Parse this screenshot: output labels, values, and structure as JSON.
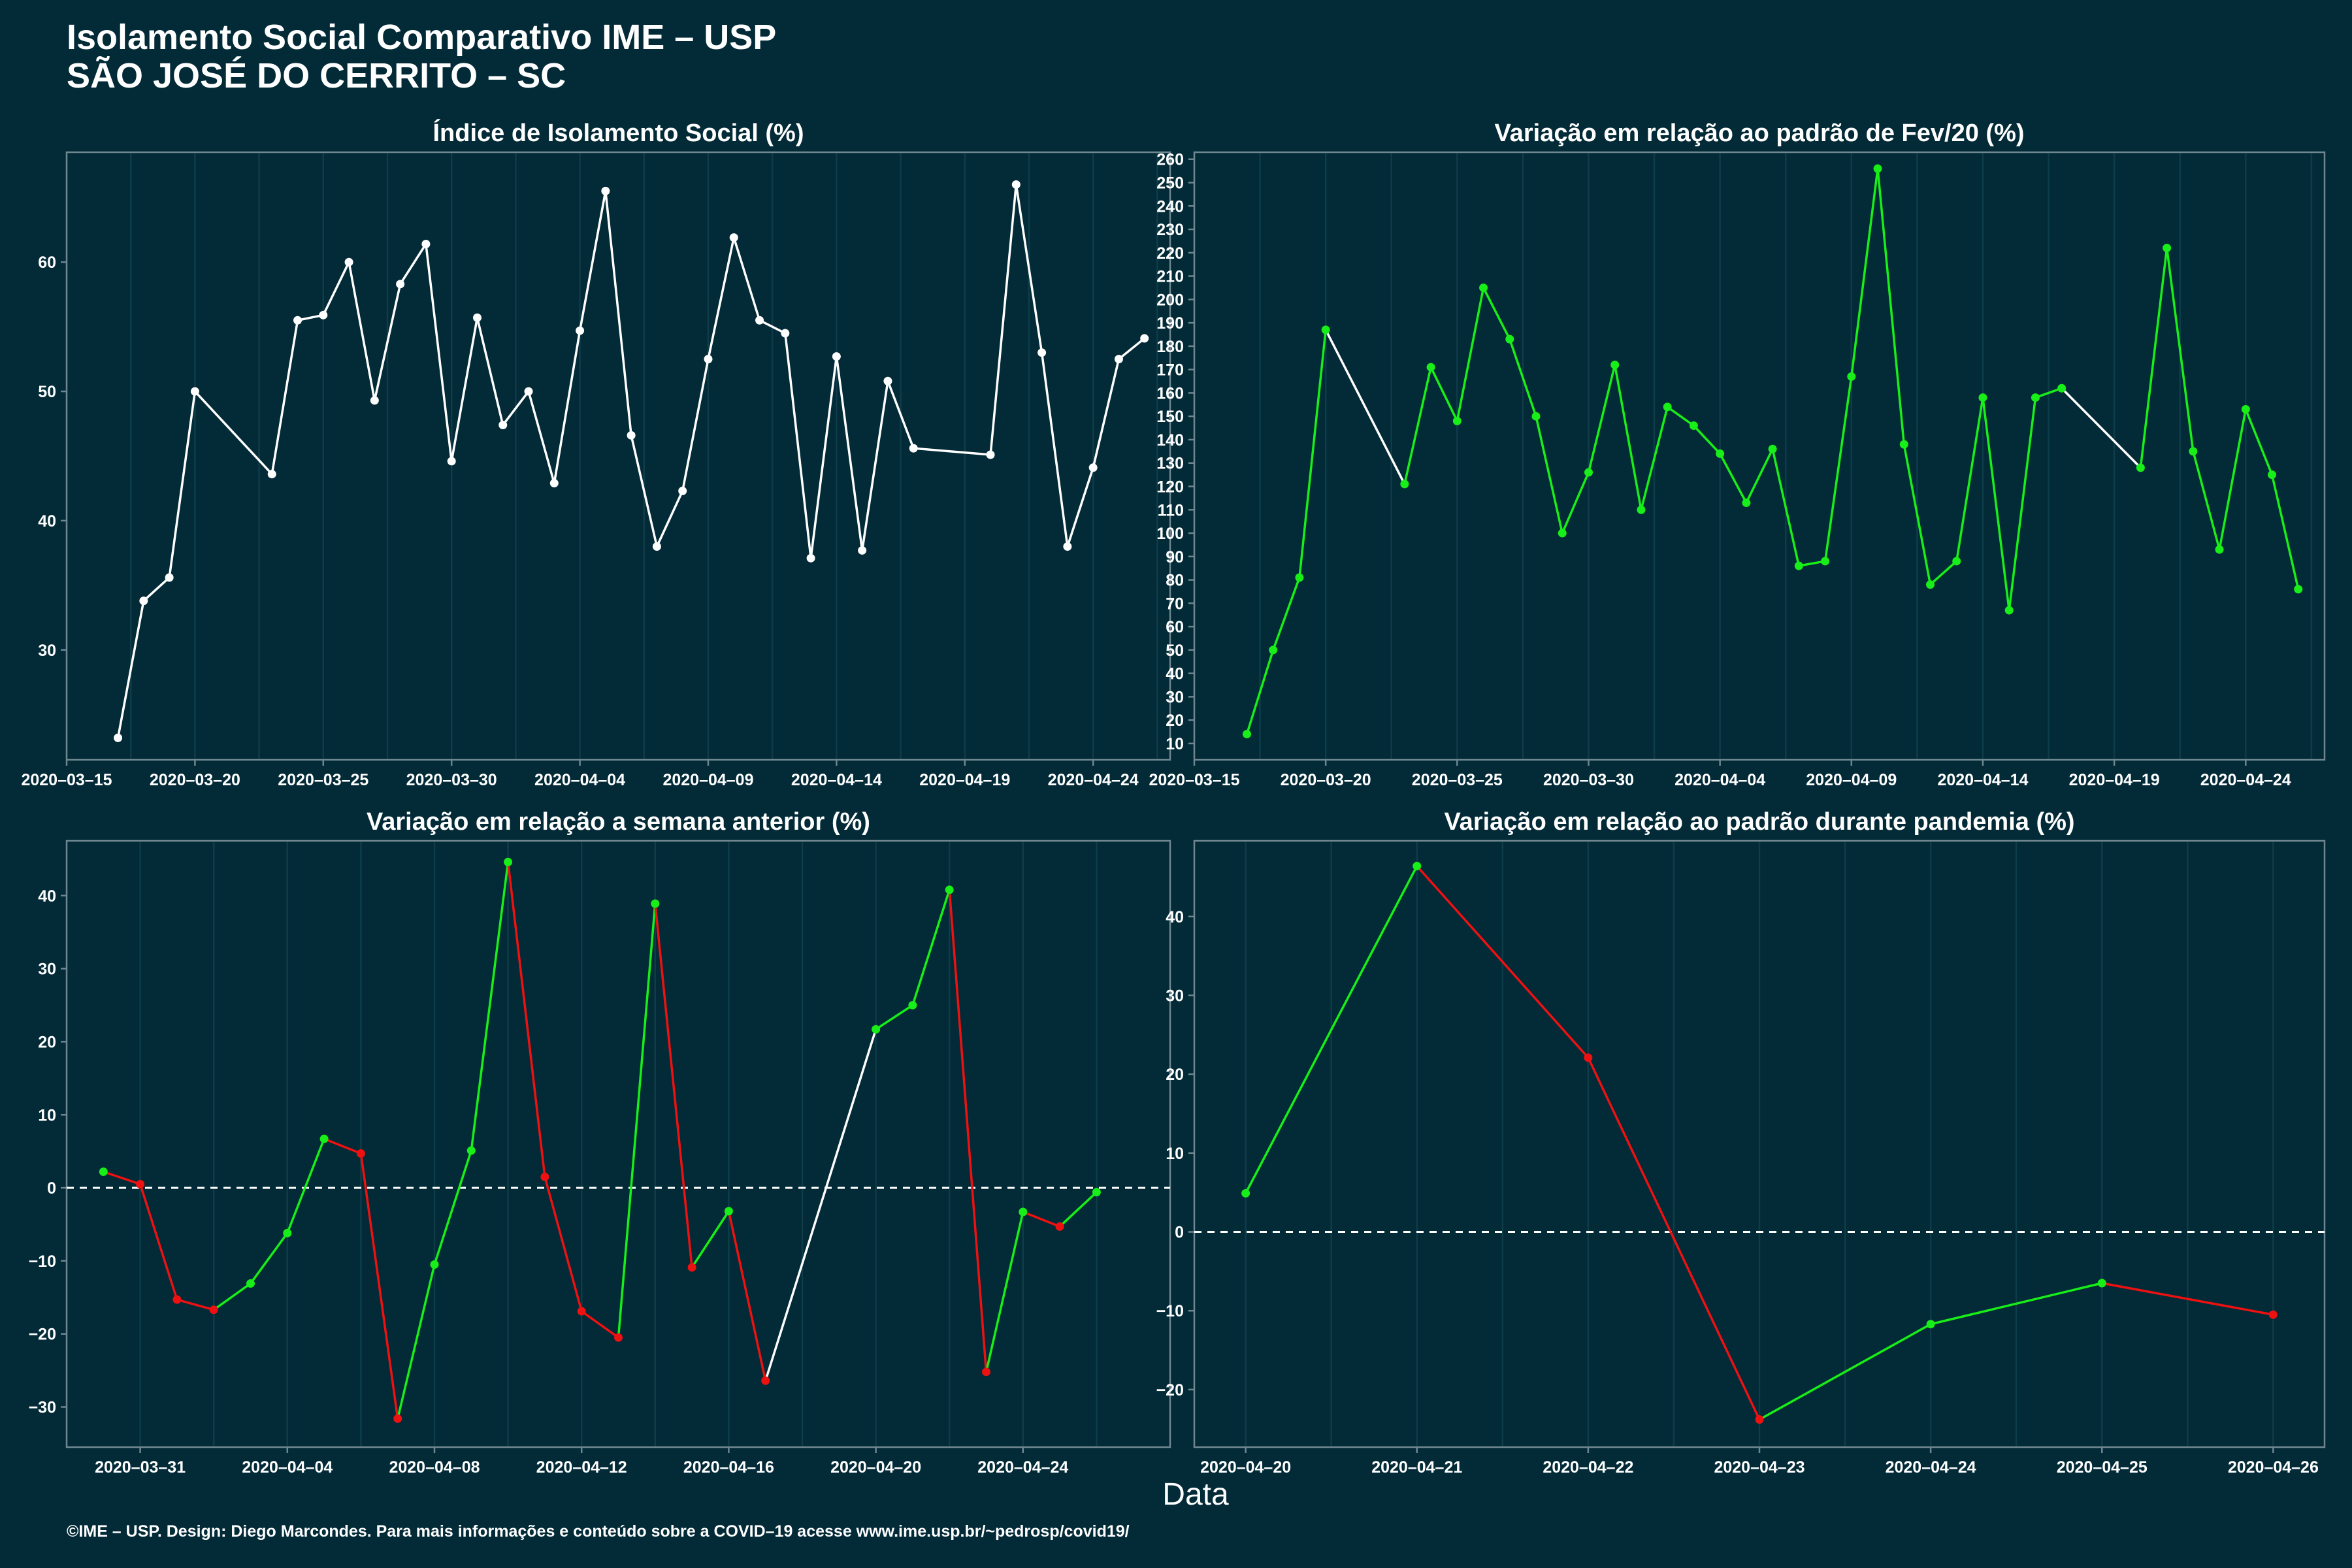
{
  "header": {
    "title_line1": "Isolamento Social Comparativo IME – USP",
    "title_line2": "SÃO JOSÉ DO CERRITO – SC"
  },
  "xlabel": "Data",
  "footer": "©IME – USP. Design: Diego Marcondes. Para mais informações e conteúdo sobre a COVID–19 acesse www.ime.usp.br/~pedrosp/covid19/",
  "colors": {
    "background": "#022a37",
    "panel_border": "#6f8790",
    "grid": "#0f3c49",
    "white": "#ffffff",
    "green": "#18ee18",
    "red": "#ee1111"
  },
  "chart_data": [
    {
      "type": "line",
      "title": "Índice de Isolamento Social (%)",
      "x_is_date": true,
      "xlim": [
        "2020-03-15",
        "2020-04-27"
      ],
      "xticks": [
        "2020-03-15",
        "2020-03-20",
        "2020-03-25",
        "2020-03-30",
        "2020-04-04",
        "2020-04-09",
        "2020-04-14",
        "2020-04-19",
        "2020-04-24"
      ],
      "ylim": [
        21.5,
        68.5
      ],
      "yticks": [
        30,
        40,
        50,
        60
      ],
      "color_mode": "white",
      "x": [
        "2020-03-17",
        "2020-03-18",
        "2020-03-19",
        "2020-03-20",
        "2020-03-23",
        "2020-03-24",
        "2020-03-25",
        "2020-03-26",
        "2020-03-27",
        "2020-03-28",
        "2020-03-29",
        "2020-03-30",
        "2020-03-31",
        "2020-04-01",
        "2020-04-02",
        "2020-04-03",
        "2020-04-04",
        "2020-04-05",
        "2020-04-06",
        "2020-04-07",
        "2020-04-08",
        "2020-04-09",
        "2020-04-10",
        "2020-04-11",
        "2020-04-12",
        "2020-04-13",
        "2020-04-14",
        "2020-04-15",
        "2020-04-16",
        "2020-04-17",
        "2020-04-20",
        "2020-04-21",
        "2020-04-22",
        "2020-04-23",
        "2020-04-24",
        "2020-04-25",
        "2020-04-26"
      ],
      "y": [
        23.2,
        33.8,
        35.6,
        50.0,
        43.6,
        55.5,
        55.9,
        60.0,
        49.3,
        58.3,
        61.4,
        44.6,
        55.7,
        47.4,
        50.0,
        42.9,
        54.7,
        65.5,
        46.6,
        38.0,
        42.3,
        52.5,
        61.9,
        55.5,
        54.5,
        37.1,
        52.7,
        37.7,
        50.8,
        45.6,
        45.1,
        66.0,
        53.0,
        38.0,
        44.1,
        52.5,
        54.1
      ]
    },
    {
      "type": "line",
      "title": "Variação em relação ao padrão de Fev/20 (%)",
      "x_is_date": true,
      "xlim": [
        "2020-03-15",
        "2020-04-27"
      ],
      "xticks": [
        "2020-03-15",
        "2020-03-20",
        "2020-03-25",
        "2020-03-30",
        "2020-04-04",
        "2020-04-09",
        "2020-04-14",
        "2020-04-19",
        "2020-04-24"
      ],
      "ylim": [
        3,
        263
      ],
      "yticks": [
        10,
        20,
        30,
        40,
        50,
        60,
        70,
        80,
        90,
        100,
        110,
        120,
        130,
        140,
        150,
        160,
        170,
        180,
        190,
        200,
        210,
        220,
        230,
        240,
        250,
        260
      ],
      "color_mode": "green_gap",
      "x": [
        "2020-03-17",
        "2020-03-18",
        "2020-03-19",
        "2020-03-20",
        "2020-03-23",
        "2020-03-24",
        "2020-03-25",
        "2020-03-26",
        "2020-03-27",
        "2020-03-28",
        "2020-03-29",
        "2020-03-30",
        "2020-03-31",
        "2020-04-01",
        "2020-04-02",
        "2020-04-03",
        "2020-04-04",
        "2020-04-05",
        "2020-04-06",
        "2020-04-07",
        "2020-04-08",
        "2020-04-09",
        "2020-04-10",
        "2020-04-11",
        "2020-04-12",
        "2020-04-13",
        "2020-04-14",
        "2020-04-15",
        "2020-04-16",
        "2020-04-17",
        "2020-04-20",
        "2020-04-21",
        "2020-04-22",
        "2020-04-23",
        "2020-04-24",
        "2020-04-25",
        "2020-04-26"
      ],
      "y": [
        14,
        50,
        81,
        187,
        121,
        171,
        148,
        205,
        183,
        150,
        100,
        126,
        172,
        110,
        154,
        146,
        134,
        113,
        136,
        86,
        88,
        167,
        256,
        138,
        78,
        88,
        158,
        67,
        158,
        162,
        128,
        222,
        135,
        93,
        153,
        125,
        76
      ]
    },
    {
      "type": "line",
      "title": "Variação em relação a semana anterior (%)",
      "x_is_date": true,
      "xlim": [
        "2020-03-29",
        "2020-04-28"
      ],
      "xticks": [
        "2020-03-31",
        "2020-04-04",
        "2020-04-08",
        "2020-04-12",
        "2020-04-16",
        "2020-04-20",
        "2020-04-24"
      ],
      "ylim": [
        -35.5,
        47.5
      ],
      "yticks": [
        -30,
        -20,
        -10,
        0,
        10,
        20,
        30,
        40
      ],
      "zero_line": true,
      "color_mode": "signed_gap",
      "x": [
        "2020-03-30",
        "2020-03-31",
        "2020-04-01",
        "2020-04-02",
        "2020-04-03",
        "2020-04-04",
        "2020-04-05",
        "2020-04-06",
        "2020-04-07",
        "2020-04-08",
        "2020-04-09",
        "2020-04-10",
        "2020-04-11",
        "2020-04-12",
        "2020-04-13",
        "2020-04-14",
        "2020-04-15",
        "2020-04-16",
        "2020-04-17",
        "2020-04-20",
        "2020-04-21",
        "2020-04-22",
        "2020-04-23",
        "2020-04-24",
        "2020-04-25",
        "2020-04-26"
      ],
      "y": [
        2.2,
        0.5,
        -15.3,
        -16.7,
        -13.1,
        -6.2,
        6.7,
        4.7,
        -31.6,
        -10.5,
        5.1,
        44.6,
        1.5,
        -16.9,
        -20.5,
        38.9,
        -10.9,
        -3.2,
        -26.4,
        21.7,
        25.0,
        40.8,
        -25.2,
        -3.3,
        -5.3,
        -0.6
      ]
    },
    {
      "type": "line",
      "title": "Variação em relação ao padrão durante pandemia (%)",
      "x_is_date": true,
      "xlim": [
        "2020-04-19.7",
        "2020-04-26.3"
      ],
      "xticks": [
        "2020-04-20",
        "2020-04-21",
        "2020-04-22",
        "2020-04-23",
        "2020-04-24",
        "2020-04-25",
        "2020-04-26"
      ],
      "ylim": [
        -27.3,
        49.6
      ],
      "yticks": [
        -20,
        -10,
        0,
        10,
        20,
        30,
        40
      ],
      "zero_line": true,
      "color_mode": "signed_gap",
      "x": [
        "2020-04-20",
        "2020-04-21",
        "2020-04-22",
        "2020-04-23",
        "2020-04-24",
        "2020-04-25",
        "2020-04-26"
      ],
      "y": [
        4.9,
        46.4,
        22.1,
        -23.8,
        -11.7,
        -6.5,
        -10.5
      ]
    }
  ]
}
